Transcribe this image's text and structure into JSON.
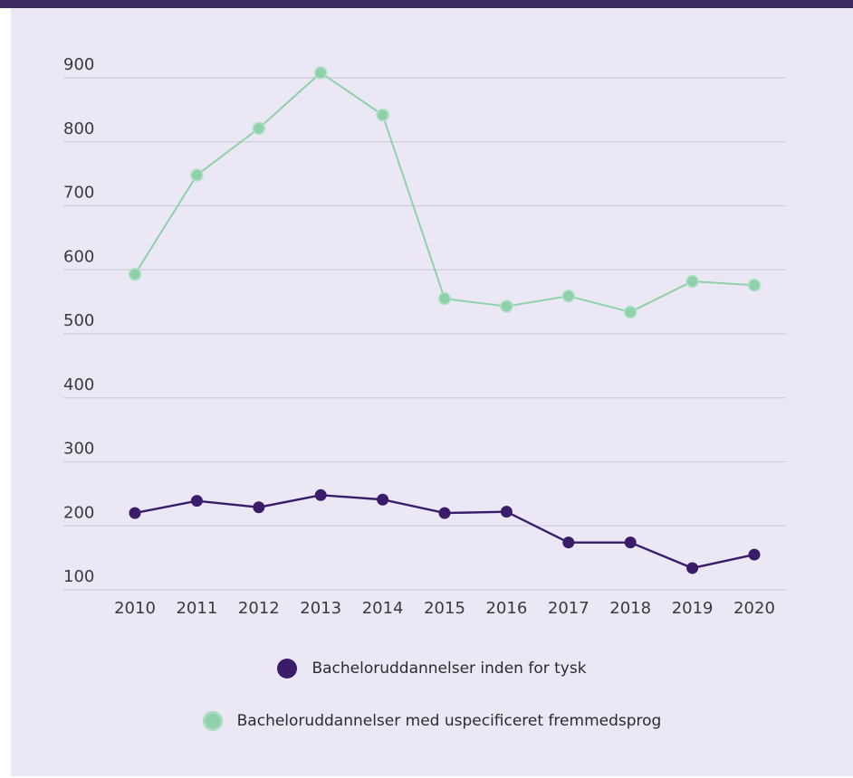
{
  "colors": {
    "header": "#3d2a63",
    "background": "#ebe7f4",
    "series_dark": "#3a1c6b",
    "series_green": "#8fd1ab"
  },
  "chart_data": {
    "type": "line",
    "title": "",
    "xlabel": "",
    "ylabel": "",
    "x": [
      "2010",
      "2011",
      "2012",
      "2013",
      "2014",
      "2015",
      "2016",
      "2017",
      "2018",
      "2019",
      "2020"
    ],
    "yticks": [
      "100",
      "200",
      "300",
      "400",
      "500",
      "600",
      "700",
      "800",
      "900"
    ],
    "ylim": [
      100,
      920
    ],
    "grid": true,
    "legend_position": "bottom",
    "series": [
      {
        "name": "Bacheloruddannelser inden for tysk",
        "color": "#3a1c6b",
        "values": [
          220,
          239,
          229,
          248,
          241,
          220,
          222,
          174,
          174,
          134,
          155
        ]
      },
      {
        "name": "Bacheloruddannelser med uspecificeret fremmedsprog",
        "color": "#8fd1ab",
        "values": [
          593,
          748,
          821,
          908,
          842,
          555,
          543,
          559,
          534,
          582,
          576
        ]
      }
    ]
  }
}
